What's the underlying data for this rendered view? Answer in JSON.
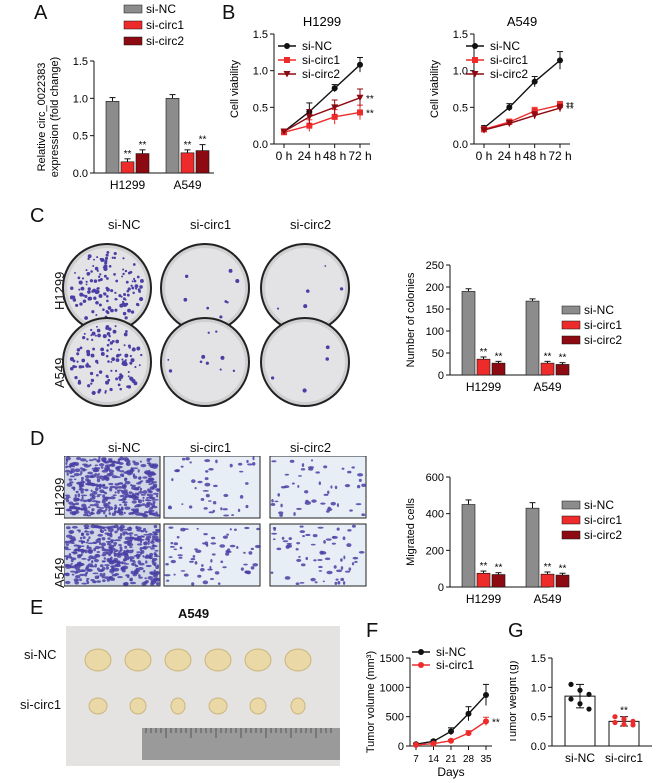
{
  "colors": {
    "nc": "#8c8c8c",
    "c1": "#ee2b2b",
    "c2": "#8e0a12",
    "black": "#111111",
    "stain": "#4a3fa5"
  },
  "panels": {
    "a": "A",
    "b": "B",
    "c": "C",
    "d": "D",
    "e": "E",
    "f": "F",
    "g": "G"
  },
  "legend": {
    "nc": "si-NC",
    "c1": "si-circ1",
    "c2": "si-circ2"
  },
  "sig": "**",
  "chart_data": [
    {
      "id": "A",
      "type": "bar",
      "categories": [
        "H1299",
        "A549"
      ],
      "series": [
        {
          "name": "si-NC",
          "values": [
            0.96,
            1.0
          ],
          "errors": [
            0.05,
            0.05
          ]
        },
        {
          "name": "si-circ1",
          "values": [
            0.15,
            0.27
          ],
          "errors": [
            0.04,
            0.04
          ]
        },
        {
          "name": "si-circ2",
          "values": [
            0.26,
            0.3
          ],
          "errors": [
            0.05,
            0.08
          ]
        }
      ],
      "ylabel_line1": "Relative circ_0022383",
      "ylabel_line2": "expression (fold change)",
      "ylim": [
        0,
        1.5
      ],
      "yticks": [
        "0.0",
        "0.5",
        "1.0",
        "1.5"
      ]
    },
    {
      "id": "B1",
      "type": "line",
      "title": "H1299",
      "x": [
        "0 h",
        "24 h",
        "48 h",
        "72 h"
      ],
      "series": [
        {
          "name": "si-NC",
          "values": [
            0.17,
            0.44,
            0.76,
            1.08
          ],
          "errors": [
            0.03,
            0.12,
            0.05,
            0.1
          ]
        },
        {
          "name": "si-circ1",
          "values": [
            0.16,
            0.25,
            0.37,
            0.43
          ],
          "errors": [
            0.02,
            0.08,
            0.1,
            0.1
          ]
        },
        {
          "name": "si-circ2",
          "values": [
            0.17,
            0.37,
            0.5,
            0.63
          ],
          "errors": [
            0.03,
            0.1,
            0.1,
            0.12
          ]
        }
      ],
      "ylabel": "Cell viability",
      "ylim": [
        0,
        1.5
      ],
      "yticks": [
        "0.0",
        "0.5",
        "1.0",
        "1.5"
      ]
    },
    {
      "id": "B2",
      "type": "line",
      "title": "A549",
      "x": [
        "0 h",
        "24 h",
        "48 h",
        "72 h"
      ],
      "series": [
        {
          "name": "si-NC",
          "values": [
            0.22,
            0.5,
            0.85,
            1.14
          ],
          "errors": [
            0.03,
            0.05,
            0.07,
            0.12
          ]
        },
        {
          "name": "si-circ1",
          "values": [
            0.2,
            0.3,
            0.45,
            0.53
          ],
          "errors": [
            0.02,
            0.04,
            0.05,
            0.05
          ]
        },
        {
          "name": "si-circ2",
          "values": [
            0.19,
            0.28,
            0.39,
            0.49
          ],
          "errors": [
            0.02,
            0.04,
            0.05,
            0.05
          ]
        }
      ],
      "ylabel": "Cell viability",
      "ylim": [
        0,
        1.5
      ],
      "yticks": [
        "0.0",
        "0.5",
        "1.0",
        "1.5"
      ]
    },
    {
      "id": "C",
      "type": "bar",
      "categories": [
        "H1299",
        "A549"
      ],
      "series": [
        {
          "name": "si-NC",
          "values": [
            190,
            168
          ],
          "errors": [
            6,
            5
          ]
        },
        {
          "name": "si-circ1",
          "values": [
            36,
            27
          ],
          "errors": [
            5,
            4
          ]
        },
        {
          "name": "si-circ2",
          "values": [
            27,
            24
          ],
          "errors": [
            4,
            4
          ]
        }
      ],
      "ylabel": "Number of colonies",
      "ylim": [
        0,
        250
      ],
      "yticks": [
        "0",
        "50",
        "100",
        "150",
        "200",
        "250"
      ]
    },
    {
      "id": "D",
      "type": "bar",
      "categories": [
        "H1299",
        "A549"
      ],
      "series": [
        {
          "name": "si-NC",
          "values": [
            450,
            430
          ],
          "errors": [
            25,
            30
          ]
        },
        {
          "name": "si-circ1",
          "values": [
            75,
            70
          ],
          "errors": [
            12,
            12
          ]
        },
        {
          "name": "si-circ2",
          "values": [
            68,
            65
          ],
          "errors": [
            10,
            10
          ]
        }
      ],
      "ylabel": "Migrated cells",
      "ylim": [
        0,
        600
      ],
      "yticks": [
        "0",
        "200",
        "400",
        "600"
      ]
    },
    {
      "id": "F",
      "type": "line",
      "x": [
        "7",
        "14",
        "21",
        "28",
        "35"
      ],
      "xlabel": "Days",
      "ylabel": "Tumor volume (mm³)",
      "series": [
        {
          "name": "si-NC",
          "values": [
            30,
            80,
            250,
            550,
            870
          ],
          "errors": [
            10,
            20,
            60,
            120,
            180
          ]
        },
        {
          "name": "si-circ1",
          "values": [
            20,
            40,
            90,
            220,
            420
          ],
          "errors": [
            5,
            10,
            20,
            40,
            70
          ]
        }
      ],
      "ylim": [
        0,
        1500
      ],
      "yticks": [
        "0",
        "500",
        "1000",
        "1500"
      ]
    },
    {
      "id": "G",
      "type": "scatter",
      "categories": [
        "si-NC",
        "si-circ1"
      ],
      "means": [
        0.85,
        0.42
      ],
      "errors": [
        0.2,
        0.08
      ],
      "points": [
        [
          1.05,
          0.95,
          0.88,
          0.8,
          0.72,
          0.63
        ],
        [
          0.5,
          0.46,
          0.42,
          0.4,
          0.37,
          0.36
        ]
      ],
      "ylabel": "Tumor weight (g)",
      "ylim": [
        0,
        1.5
      ],
      "yticks": [
        "0.0",
        "0.5",
        "1.0",
        "1.5"
      ]
    }
  ],
  "panelB": {
    "title1": "H1299",
    "title2": "A549"
  },
  "panelC": {
    "cols": [
      "si-NC",
      "si-circ1",
      "si-circ2"
    ],
    "rows": [
      "H1299",
      "A549"
    ]
  },
  "panelD": {
    "cols": [
      "si-NC",
      "si-circ1",
      "si-circ2"
    ],
    "rows": [
      "H1299",
      "A549"
    ]
  },
  "panelE": {
    "title": "A549",
    "rows": [
      "si-NC",
      "si-circ1"
    ]
  }
}
